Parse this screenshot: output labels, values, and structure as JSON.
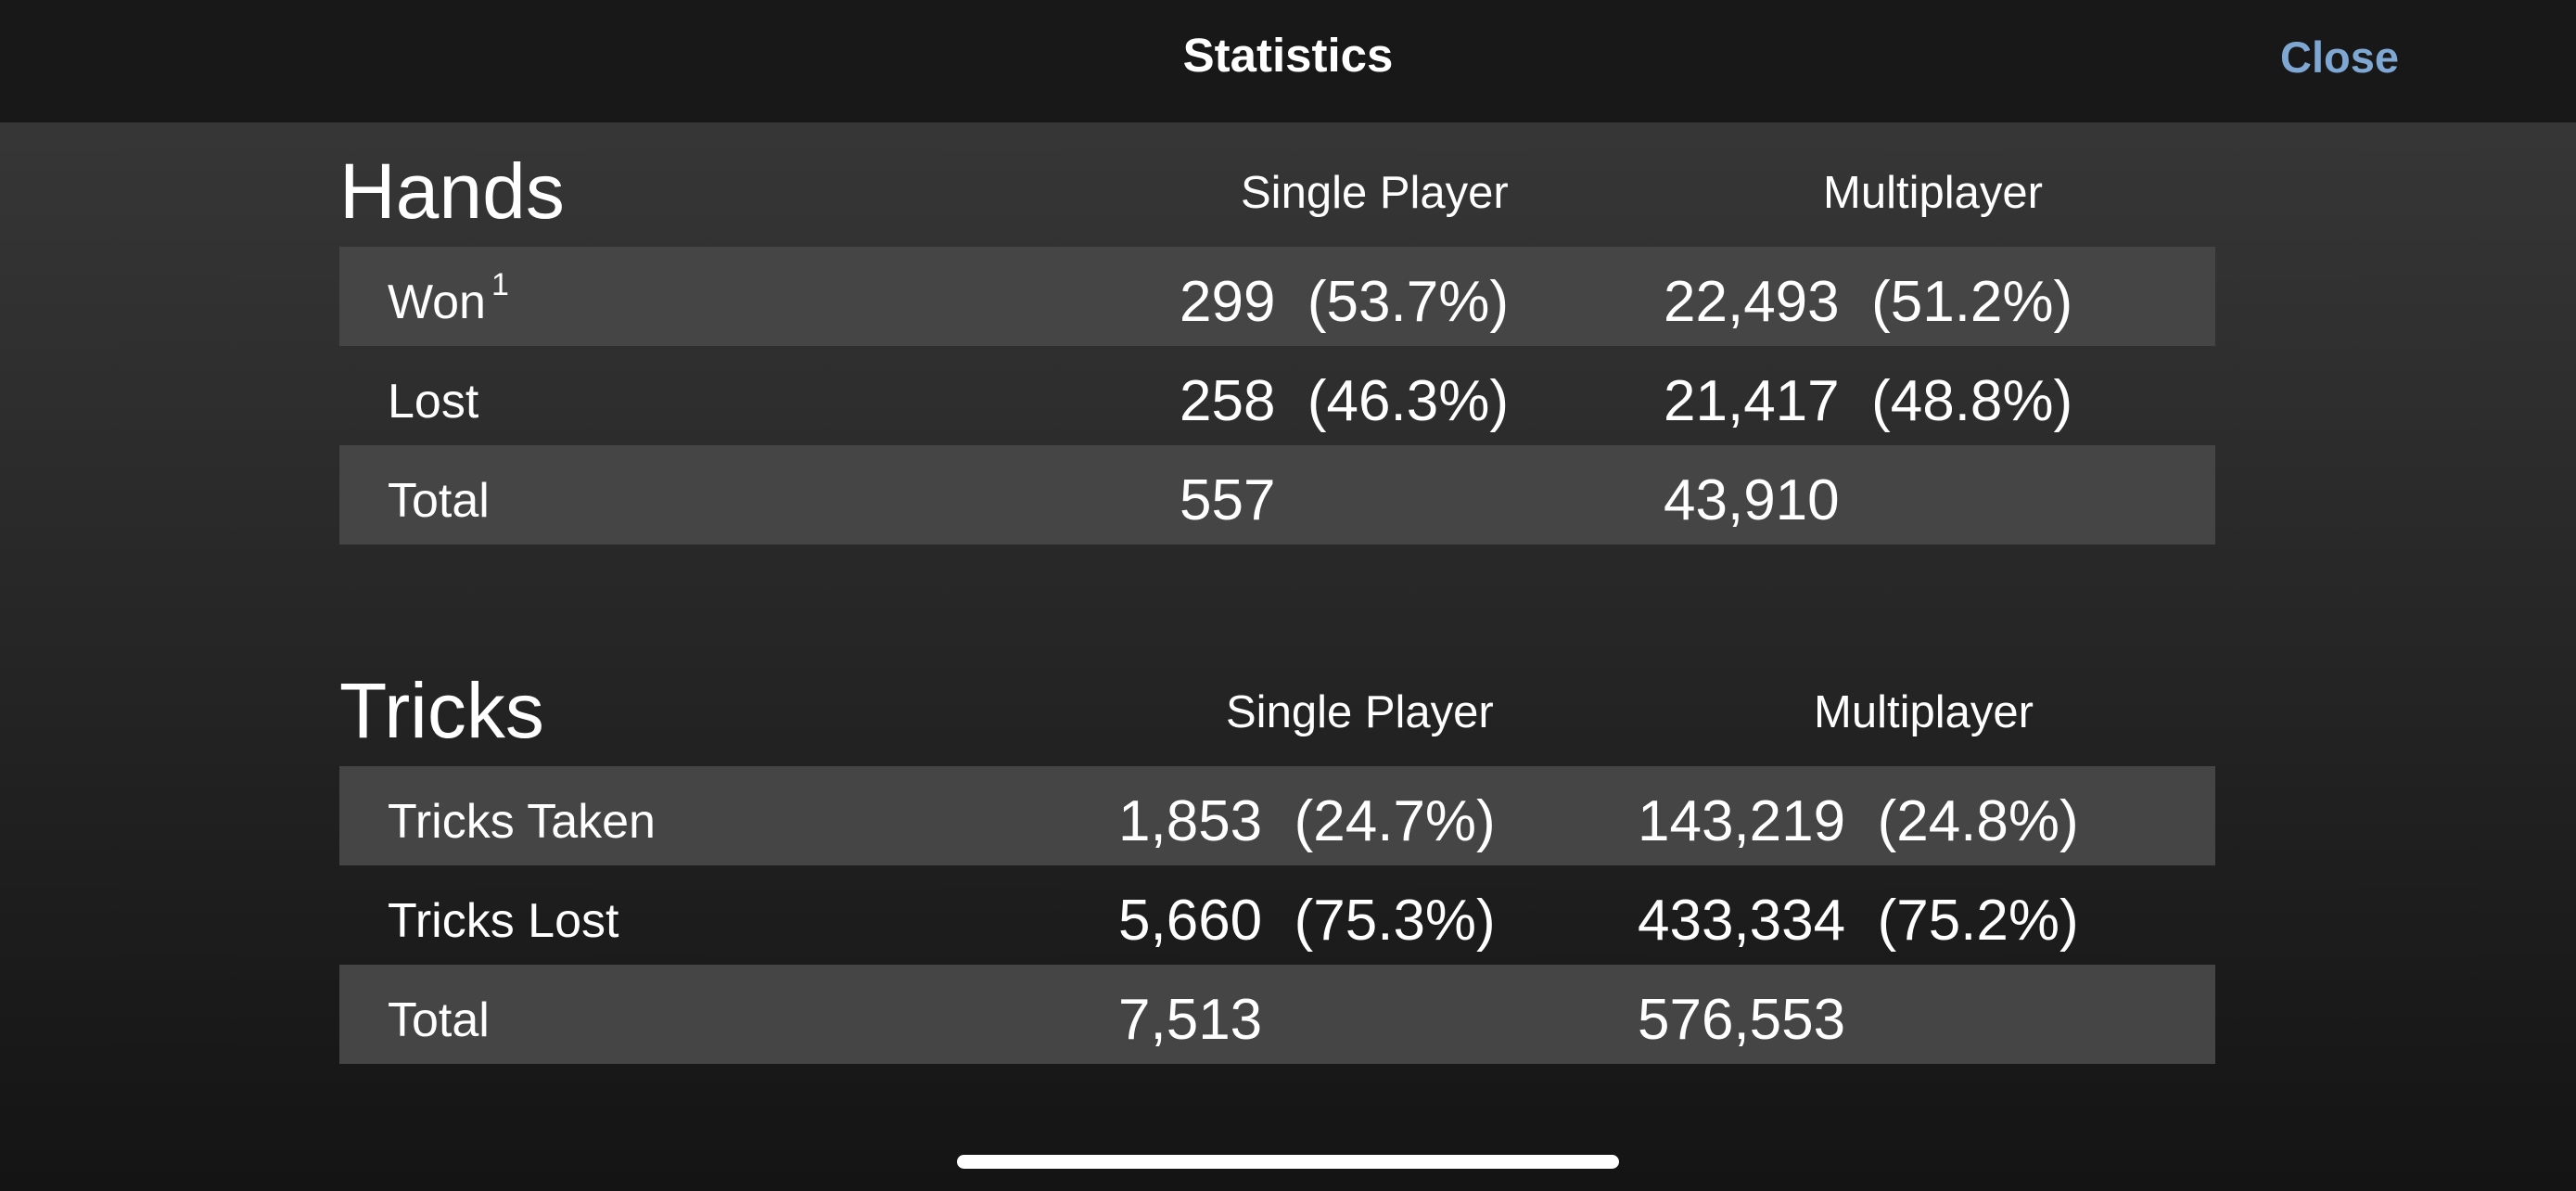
{
  "navbar": {
    "title": "Statistics",
    "close_label": "Close"
  },
  "hands": {
    "title": "Hands",
    "col_single": "Single Player",
    "col_multi": "Multiplayer",
    "rows": [
      {
        "label": "Won",
        "footnote": "1",
        "single": "299  (53.7%)",
        "multi": "22,493  (51.2%)"
      },
      {
        "label": "Lost",
        "single": "258  (46.3%)",
        "multi": "21,417  (48.8%)"
      },
      {
        "label": "Total",
        "single": "557",
        "multi": "43,910"
      }
    ]
  },
  "tricks": {
    "title": "Tricks",
    "col_single": "Single Player",
    "col_multi": "Multiplayer",
    "rows": [
      {
        "label": "Tricks Taken",
        "single": "1,853  (24.7%)",
        "multi": "143,219  (24.8%)"
      },
      {
        "label": "Tricks Lost",
        "single": "5,660  (75.3%)",
        "multi": "433,334  (75.2%)"
      },
      {
        "label": "Total",
        "single": "7,513",
        "multi": "576,553"
      }
    ]
  }
}
